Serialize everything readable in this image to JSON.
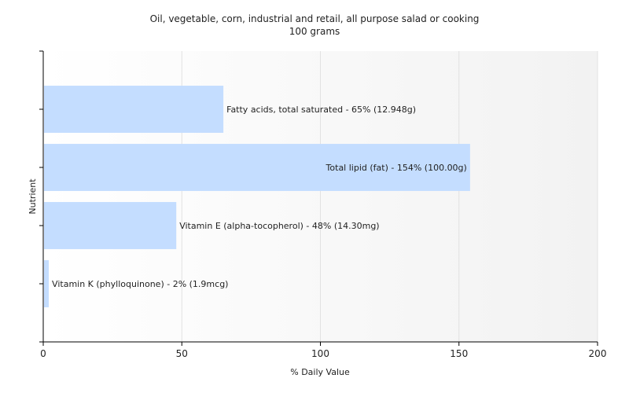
{
  "chart_data": {
    "type": "bar",
    "orientation": "horizontal",
    "title": "Oil, vegetable, corn, industrial and retail, all purpose salad or cooking",
    "subtitle": "100 grams",
    "xlabel": "% Daily Value",
    "ylabel": "Nutrient",
    "xlim": [
      0,
      200
    ],
    "xticks": [
      0,
      50,
      100,
      150,
      200
    ],
    "grid": true,
    "categories": [
      "Fatty acids, total saturated",
      "Total lipid (fat)",
      "Vitamin E (alpha-tocopherol)",
      "Vitamin K (phylloquinone)"
    ],
    "values": [
      65,
      154,
      48,
      2
    ],
    "labels": [
      "Fatty acids, total saturated - 65% (12.948g)",
      "Total lipid (fat) - 154% (100.00g)",
      "Vitamin E (alpha-tocopherol) - 48% (14.30mg)",
      "Vitamin K (phylloquinone) - 2% (1.9mcg)"
    ],
    "colors": {
      "bar": "#c4ddff",
      "plot_background_start": "#ffffff",
      "plot_background_end": "#f2f2f2",
      "grid": "#e2e2e2",
      "axis": "#000000"
    }
  }
}
